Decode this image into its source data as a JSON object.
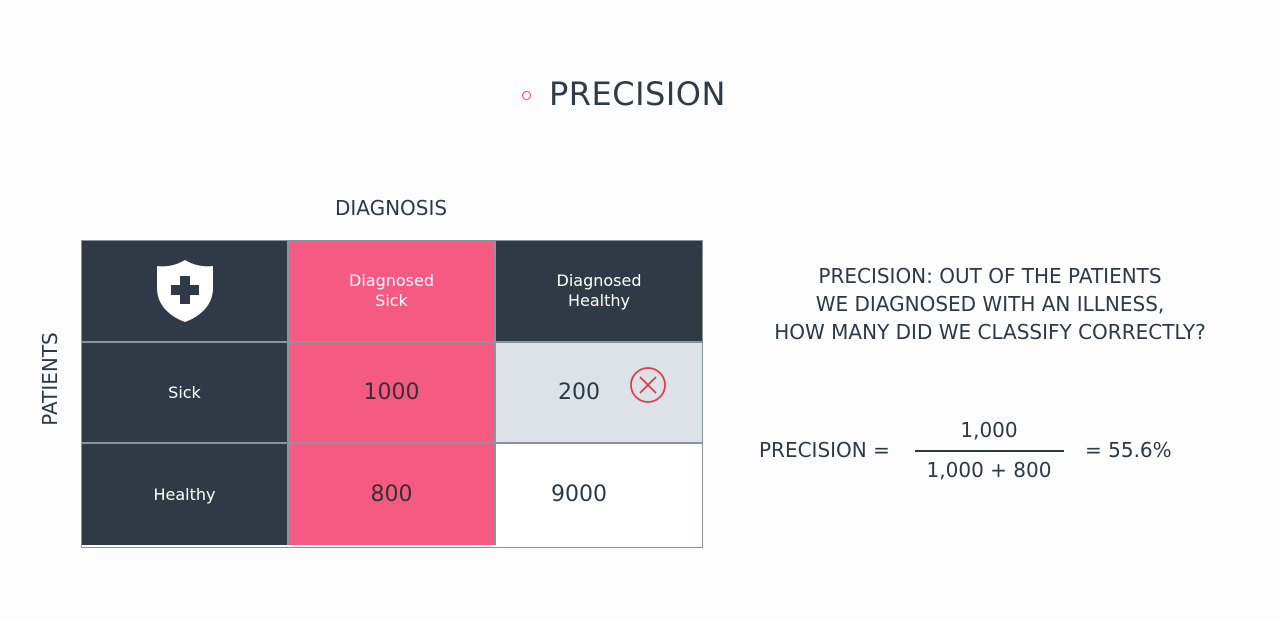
{
  "title": "PRECISION",
  "diagnosis_label": "DIAGNOSIS",
  "patients_label": "PATIENTS",
  "table": {
    "header": {
      "icon": "shield-plus-icon",
      "diagnosed_sick": [
        "Diagnosed",
        "Sick"
      ],
      "diagnosed_healthy": [
        "Diagnosed",
        "Healthy"
      ]
    },
    "rows": [
      {
        "label": "Sick",
        "diagnosed_sick": "1000",
        "diagnosed_healthy": "200",
        "mark_icon": "x-circle-icon"
      },
      {
        "label": "Healthy",
        "diagnosed_sick": "800",
        "diagnosed_healthy": "9000"
      }
    ]
  },
  "question": [
    "PRECISION: OUT OF THE PATIENTS",
    "WE DIAGNOSED WITH AN ILLNESS,",
    "HOW MANY DID WE CLASSIFY CORRECTLY?"
  ],
  "formula": {
    "label": "PRECISION =",
    "numerator": "1,000",
    "denominator": "1,000 + 800",
    "result": "= 55.6%"
  },
  "colors": {
    "dark": "#2f3a46",
    "pink": "#f45a82",
    "grey": "#dce2e6",
    "accent": "#e8456f"
  }
}
